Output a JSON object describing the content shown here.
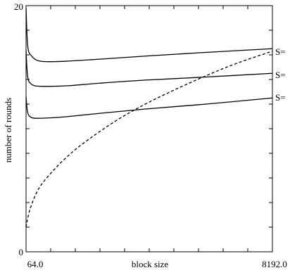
{
  "chart_data": {
    "type": "line",
    "xlabel": "block size",
    "ylabel": "number of rounds",
    "xlim": [
      64.0,
      8192.0
    ],
    "ylim": [
      0,
      20
    ],
    "x_tick_labels": [
      "64.0",
      "8192.0"
    ],
    "y_tick_labels": [
      "0",
      "20"
    ],
    "grid": false,
    "series": [
      {
        "name": "S=",
        "style": "solid",
        "points": [
          [
            64,
            19.8
          ],
          [
            120,
            16.7
          ],
          [
            250,
            15.9
          ],
          [
            500,
            15.5
          ],
          [
            1000,
            15.45
          ],
          [
            1500,
            15.5
          ],
          [
            2500,
            15.65
          ],
          [
            4000,
            15.9
          ],
          [
            6000,
            16.2
          ],
          [
            8192,
            16.5
          ]
        ]
      },
      {
        "name": "S=",
        "style": "solid",
        "points": [
          [
            64,
            16.4
          ],
          [
            120,
            14.2
          ],
          [
            250,
            13.6
          ],
          [
            500,
            13.45
          ],
          [
            1000,
            13.45
          ],
          [
            1500,
            13.5
          ],
          [
            2500,
            13.7
          ],
          [
            4000,
            13.95
          ],
          [
            6000,
            14.2
          ],
          [
            8192,
            14.5
          ]
        ]
      },
      {
        "name": "S=",
        "style": "solid",
        "points": [
          [
            64,
            12.6
          ],
          [
            120,
            11.3
          ],
          [
            250,
            10.9
          ],
          [
            500,
            10.85
          ],
          [
            1000,
            10.9
          ],
          [
            1500,
            11.0
          ],
          [
            2500,
            11.25
          ],
          [
            4000,
            11.6
          ],
          [
            6000,
            12.0
          ],
          [
            8192,
            12.5
          ]
        ]
      },
      {
        "name": "",
        "style": "dashed",
        "points": [
          [
            64,
            2.0
          ],
          [
            200,
            3.5
          ],
          [
            500,
            5.2
          ],
          [
            1000,
            6.7
          ],
          [
            1500,
            7.9
          ],
          [
            2000,
            8.9
          ],
          [
            3000,
            10.6
          ],
          [
            4000,
            12.0
          ],
          [
            5000,
            13.2
          ],
          [
            6000,
            14.3
          ],
          [
            7000,
            15.3
          ],
          [
            8192,
            16.3
          ]
        ]
      }
    ]
  }
}
